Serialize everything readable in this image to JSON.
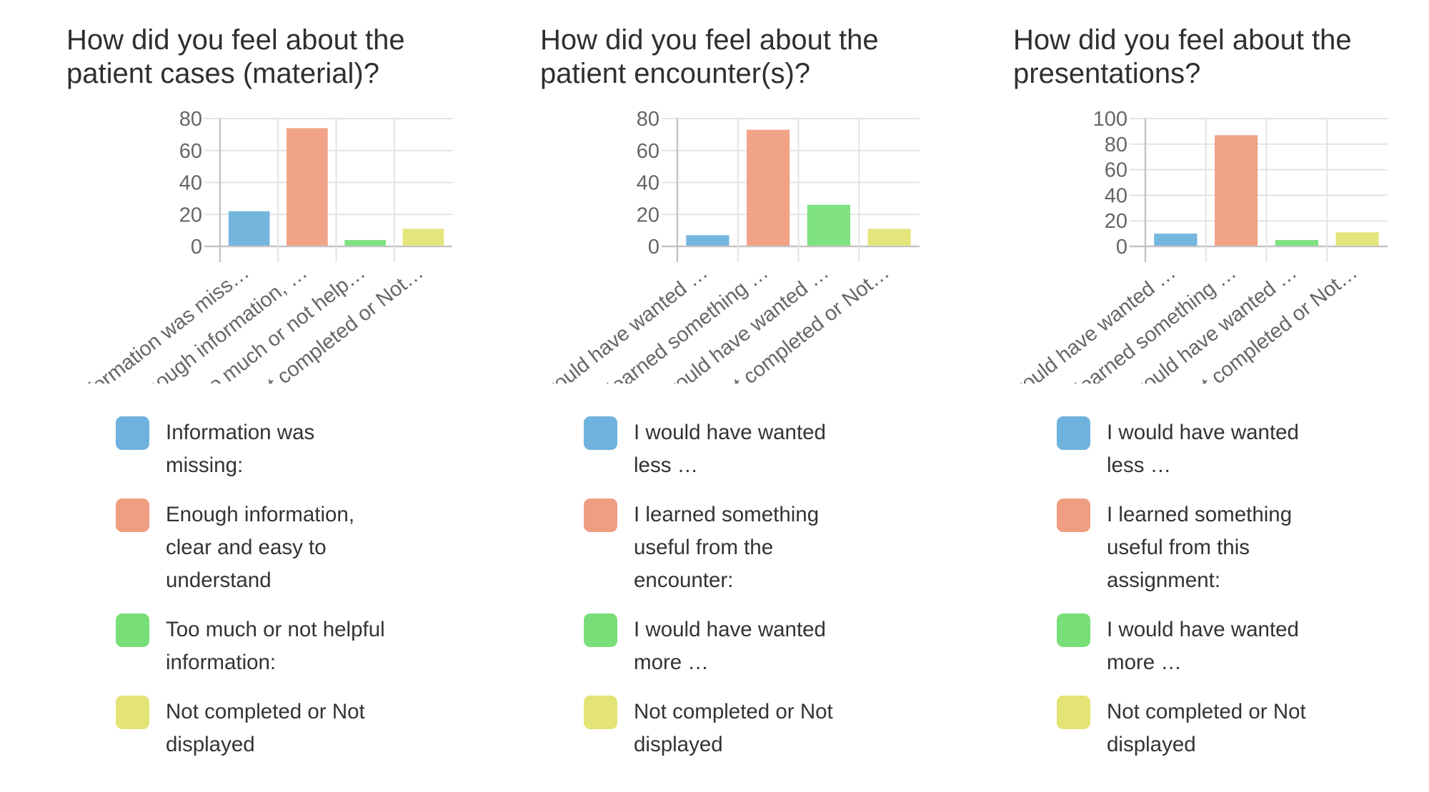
{
  "colors": {
    "blue": "#6eb2dd",
    "orange": "#f09e82",
    "green": "#78df78",
    "yellow": "#e3e475",
    "grid": "#e3e3e3",
    "axis": "#c4c4c4",
    "tick_text": "#666666"
  },
  "chart_data": [
    {
      "type": "bar",
      "title": "How did you feel about the patient cases (material)?",
      "title_lines": [
        "How did you feel about the",
        "patient cases (material)?"
      ],
      "categories": [
        "Information was miss…",
        "Enough information, …",
        "Too much or not help…",
        "Not completed or Not…"
      ],
      "values": [
        22,
        74,
        4,
        11
      ],
      "colors": [
        "#6eb2dd",
        "#f09e82",
        "#78df78",
        "#e3e475"
      ],
      "ylim": [
        0,
        80
      ],
      "yticks": [
        "0",
        "20",
        "40",
        "60",
        "80"
      ],
      "ytick_values": [
        0,
        20,
        40,
        60,
        80
      ],
      "grid": true,
      "legend_position": "bottom",
      "legend": [
        {
          "label": "Information was missing:",
          "lines": [
            "Information was",
            "missing:"
          ],
          "color": "#6eb2dd"
        },
        {
          "label": "Enough information, clear and easy to understand",
          "lines": [
            "Enough information,",
            "clear and easy to",
            "understand"
          ],
          "color": "#f09e82"
        },
        {
          "label": "Too much or not helpful information:",
          "lines": [
            "Too much or not helpful",
            "information:"
          ],
          "color": "#78df78"
        },
        {
          "label": "Not completed or Not displayed",
          "lines": [
            "Not completed or Not",
            "displayed"
          ],
          "color": "#e3e475"
        }
      ]
    },
    {
      "type": "bar",
      "title": "How did you feel about the patient encounter(s)?",
      "title_lines": [
        "How did you feel about the",
        "patient encounter(s)?"
      ],
      "categories": [
        "I would have wanted …",
        "I learned something …",
        "I would have wanted …",
        "Not completed or Not…"
      ],
      "values": [
        7,
        73,
        26,
        11
      ],
      "colors": [
        "#6eb2dd",
        "#f09e82",
        "#78df78",
        "#e3e475"
      ],
      "ylim": [
        0,
        80
      ],
      "yticks": [
        "0",
        "20",
        "40",
        "60",
        "80"
      ],
      "ytick_values": [
        0,
        20,
        40,
        60,
        80
      ],
      "grid": true,
      "legend_position": "bottom",
      "legend": [
        {
          "label": "I would have wanted less …",
          "lines": [
            "I would have wanted",
            "less …"
          ],
          "color": "#6eb2dd"
        },
        {
          "label": "I learned something useful from the encounter:",
          "lines": [
            "I learned something",
            "useful from the",
            "encounter:"
          ],
          "color": "#f09e82"
        },
        {
          "label": "I would have wanted more …",
          "lines": [
            "I would have wanted",
            "more …"
          ],
          "color": "#78df78"
        },
        {
          "label": "Not completed or Not displayed",
          "lines": [
            "Not completed or Not",
            "displayed"
          ],
          "color": "#e3e475"
        }
      ]
    },
    {
      "type": "bar",
      "title": "How did you feel about the presentations?",
      "title_lines": [
        "How did you feel about the",
        "presentations?"
      ],
      "categories": [
        "I would have wanted …",
        "I learned something …",
        "I would have wanted …",
        "Not completed or Not…"
      ],
      "values": [
        10,
        87,
        5,
        11
      ],
      "colors": [
        "#6eb2dd",
        "#f09e82",
        "#78df78",
        "#e3e475"
      ],
      "ylim": [
        0,
        100
      ],
      "yticks": [
        "0",
        "20",
        "40",
        "60",
        "80",
        "100"
      ],
      "ytick_values": [
        0,
        20,
        40,
        60,
        80,
        100
      ],
      "grid": true,
      "legend_position": "bottom",
      "legend": [
        {
          "label": "I would have wanted less …",
          "lines": [
            "I would have wanted",
            "less …"
          ],
          "color": "#6eb2dd"
        },
        {
          "label": "I learned something useful from this assignment:",
          "lines": [
            "I learned something",
            "useful from this",
            "assignment:"
          ],
          "color": "#f09e82"
        },
        {
          "label": "I would have wanted more …",
          "lines": [
            "I would have wanted",
            "more …"
          ],
          "color": "#78df78"
        },
        {
          "label": "Not completed or Not displayed",
          "lines": [
            "Not completed or Not",
            "displayed"
          ],
          "color": "#e3e475"
        }
      ]
    }
  ]
}
